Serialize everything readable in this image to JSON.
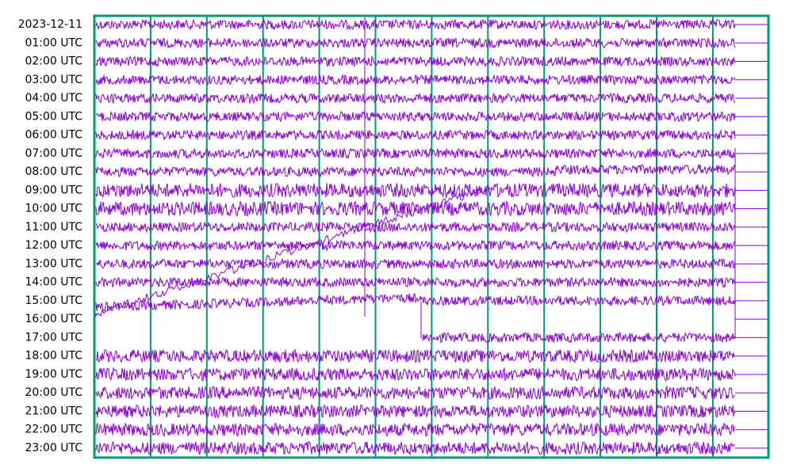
{
  "chart_data": {
    "type": "helicorder",
    "categories": [
      "2023-12-11",
      "01:00 UTC",
      "02:00 UTC",
      "03:00 UTC",
      "04:00 UTC",
      "05:00 UTC",
      "06:00 UTC",
      "07:00 UTC",
      "08:00 UTC",
      "09:00 UTC",
      "10:00 UTC",
      "11:00 UTC",
      "12:00 UTC",
      "13:00 UTC",
      "14:00 UTC",
      "15:00 UTC",
      "16:00 UTC",
      "17:00 UTC",
      "18:00 UTC",
      "19:00 UTC",
      "20:00 UTC",
      "21:00 UTC",
      "22:00 UTC",
      "23:00 UTC"
    ],
    "color": "#8a00d2",
    "frame_color": "#00997a"
  }
}
